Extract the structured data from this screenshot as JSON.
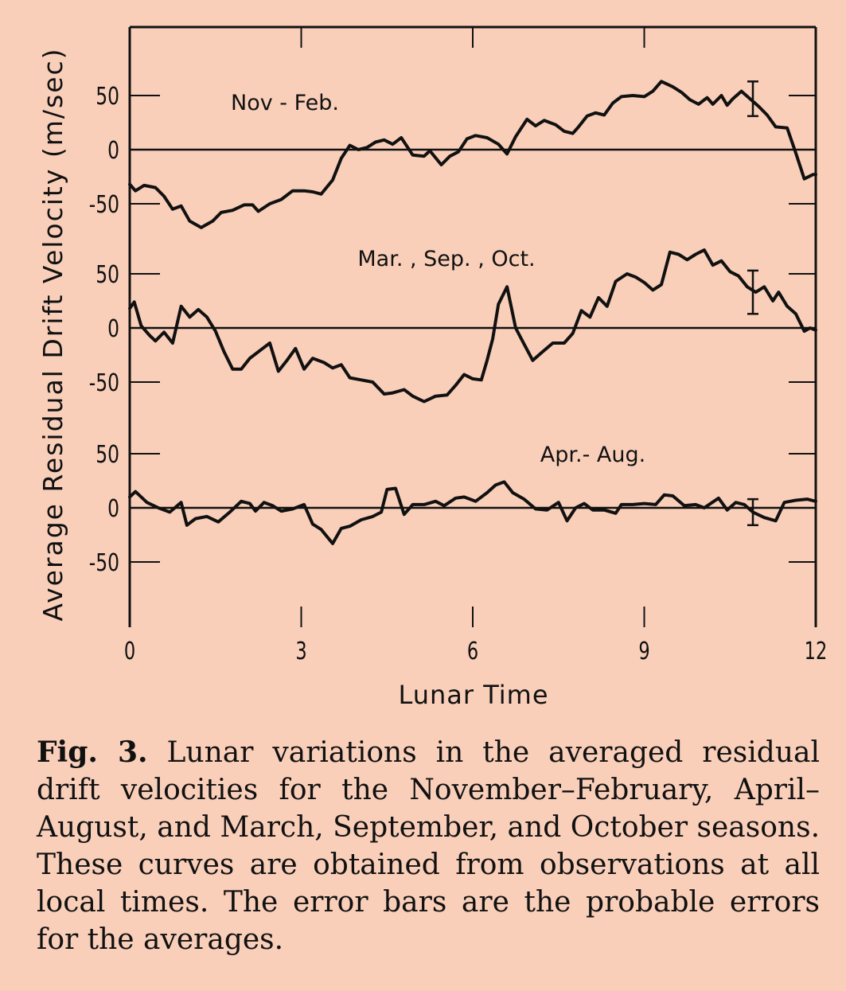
{
  "chart_data": {
    "type": "line",
    "xlabel": "Lunar Time",
    "ylabel": "Average Residual Drift Velocity (m/sec)",
    "xlim": [
      0,
      12
    ],
    "ylim": [
      -75,
      75
    ],
    "x_ticks": [
      0,
      3,
      6,
      9,
      12
    ],
    "x_tick_labels": [
      "0",
      "3",
      "6",
      "9",
      "12"
    ],
    "y_ticks": [
      50,
      0,
      -50
    ],
    "y_tick_labels": [
      "50",
      "0",
      "-50"
    ],
    "panels": [
      {
        "label": "Nov - Feb.",
        "error_bar": {
          "x": 10.9,
          "half_width": 16
        },
        "series": [
          {
            "x": 0,
            "y": -32
          },
          {
            "x": 0.1,
            "y": -38
          },
          {
            "x": 0.25,
            "y": -33
          },
          {
            "x": 0.45,
            "y": -35
          },
          {
            "x": 0.6,
            "y": -43
          },
          {
            "x": 0.75,
            "y": -55
          },
          {
            "x": 0.9,
            "y": -52
          },
          {
            "x": 1.05,
            "y": -66
          },
          {
            "x": 1.25,
            "y": -72
          },
          {
            "x": 1.45,
            "y": -66
          },
          {
            "x": 1.6,
            "y": -58
          },
          {
            "x": 1.8,
            "y": -56
          },
          {
            "x": 2.0,
            "y": -51
          },
          {
            "x": 2.15,
            "y": -51
          },
          {
            "x": 2.25,
            "y": -57
          },
          {
            "x": 2.45,
            "y": -50
          },
          {
            "x": 2.65,
            "y": -46
          },
          {
            "x": 2.85,
            "y": -38
          },
          {
            "x": 3.05,
            "y": -38
          },
          {
            "x": 3.2,
            "y": -39
          },
          {
            "x": 3.35,
            "y": -41
          },
          {
            "x": 3.55,
            "y": -28
          },
          {
            "x": 3.7,
            "y": -8
          },
          {
            "x": 3.85,
            "y": 4
          },
          {
            "x": 4.0,
            "y": 0
          },
          {
            "x": 4.15,
            "y": 2
          },
          {
            "x": 4.3,
            "y": 7
          },
          {
            "x": 4.45,
            "y": 9
          },
          {
            "x": 4.6,
            "y": 5
          },
          {
            "x": 4.75,
            "y": 11
          },
          {
            "x": 4.95,
            "y": -5
          },
          {
            "x": 5.15,
            "y": -6
          },
          {
            "x": 5.25,
            "y": -1
          },
          {
            "x": 5.45,
            "y": -14
          },
          {
            "x": 5.6,
            "y": -6
          },
          {
            "x": 5.75,
            "y": -2
          },
          {
            "x": 5.9,
            "y": 10
          },
          {
            "x": 6.05,
            "y": 13
          },
          {
            "x": 6.25,
            "y": 11
          },
          {
            "x": 6.45,
            "y": 5
          },
          {
            "x": 6.6,
            "y": -4
          },
          {
            "x": 6.75,
            "y": 12
          },
          {
            "x": 6.95,
            "y": 28
          },
          {
            "x": 7.1,
            "y": 22
          },
          {
            "x": 7.25,
            "y": 27
          },
          {
            "x": 7.45,
            "y": 23
          },
          {
            "x": 7.6,
            "y": 17
          },
          {
            "x": 7.75,
            "y": 15
          },
          {
            "x": 7.85,
            "y": 21
          },
          {
            "x": 8.0,
            "y": 31
          },
          {
            "x": 8.15,
            "y": 34
          },
          {
            "x": 8.3,
            "y": 32
          },
          {
            "x": 8.45,
            "y": 43
          },
          {
            "x": 8.6,
            "y": 49
          },
          {
            "x": 8.8,
            "y": 50
          },
          {
            "x": 9.0,
            "y": 49
          },
          {
            "x": 9.15,
            "y": 54
          },
          {
            "x": 9.3,
            "y": 63
          },
          {
            "x": 9.5,
            "y": 58
          },
          {
            "x": 9.65,
            "y": 53
          },
          {
            "x": 9.8,
            "y": 46
          },
          {
            "x": 9.95,
            "y": 42
          },
          {
            "x": 10.1,
            "y": 48
          },
          {
            "x": 10.2,
            "y": 42
          },
          {
            "x": 10.35,
            "y": 50
          },
          {
            "x": 10.45,
            "y": 41
          },
          {
            "x": 10.55,
            "y": 47
          },
          {
            "x": 10.7,
            "y": 54
          },
          {
            "x": 10.85,
            "y": 47
          },
          {
            "x": 11.0,
            "y": 40
          },
          {
            "x": 11.15,
            "y": 32
          },
          {
            "x": 11.3,
            "y": 21
          },
          {
            "x": 11.5,
            "y": 20
          },
          {
            "x": 11.65,
            "y": -3
          },
          {
            "x": 11.8,
            "y": -27
          },
          {
            "x": 11.95,
            "y": -23
          },
          {
            "x": 12.0,
            "y": -23
          }
        ]
      },
      {
        "label": "Mar. , Sep. , Oct.",
        "error_bar": {
          "x": 10.9,
          "half_width": 20
        },
        "series": [
          {
            "x": 0,
            "y": 18
          },
          {
            "x": 0.08,
            "y": 24
          },
          {
            "x": 0.2,
            "y": 2
          },
          {
            "x": 0.35,
            "y": -7
          },
          {
            "x": 0.45,
            "y": -12
          },
          {
            "x": 0.6,
            "y": -4
          },
          {
            "x": 0.75,
            "y": -14
          },
          {
            "x": 0.9,
            "y": 20
          },
          {
            "x": 1.05,
            "y": 10
          },
          {
            "x": 1.2,
            "y": 17
          },
          {
            "x": 1.35,
            "y": 10
          },
          {
            "x": 1.5,
            "y": -3
          },
          {
            "x": 1.65,
            "y": -22
          },
          {
            "x": 1.8,
            "y": -38
          },
          {
            "x": 1.95,
            "y": -38
          },
          {
            "x": 2.1,
            "y": -28
          },
          {
            "x": 2.3,
            "y": -20
          },
          {
            "x": 2.45,
            "y": -14
          },
          {
            "x": 2.6,
            "y": -40
          },
          {
            "x": 2.75,
            "y": -30
          },
          {
            "x": 2.9,
            "y": -19
          },
          {
            "x": 3.05,
            "y": -38
          },
          {
            "x": 3.2,
            "y": -28
          },
          {
            "x": 3.4,
            "y": -32
          },
          {
            "x": 3.55,
            "y": -37
          },
          {
            "x": 3.7,
            "y": -34
          },
          {
            "x": 3.85,
            "y": -46
          },
          {
            "x": 4.05,
            "y": -48
          },
          {
            "x": 4.25,
            "y": -50
          },
          {
            "x": 4.45,
            "y": -61
          },
          {
            "x": 4.6,
            "y": -60
          },
          {
            "x": 4.8,
            "y": -57
          },
          {
            "x": 4.95,
            "y": -63
          },
          {
            "x": 5.15,
            "y": -68
          },
          {
            "x": 5.35,
            "y": -63
          },
          {
            "x": 5.55,
            "y": -62
          },
          {
            "x": 5.7,
            "y": -53
          },
          {
            "x": 5.85,
            "y": -43
          },
          {
            "x": 6.0,
            "y": -47
          },
          {
            "x": 6.15,
            "y": -48
          },
          {
            "x": 6.25,
            "y": -30
          },
          {
            "x": 6.35,
            "y": -10
          },
          {
            "x": 6.45,
            "y": 22
          },
          {
            "x": 6.6,
            "y": 38
          },
          {
            "x": 6.75,
            "y": 0
          },
          {
            "x": 6.9,
            "y": -15
          },
          {
            "x": 7.05,
            "y": -30
          },
          {
            "x": 7.2,
            "y": -23
          },
          {
            "x": 7.4,
            "y": -14
          },
          {
            "x": 7.6,
            "y": -14
          },
          {
            "x": 7.75,
            "y": -5
          },
          {
            "x": 7.9,
            "y": 16
          },
          {
            "x": 8.05,
            "y": 10
          },
          {
            "x": 8.2,
            "y": 28
          },
          {
            "x": 8.35,
            "y": 20
          },
          {
            "x": 8.5,
            "y": 43
          },
          {
            "x": 8.7,
            "y": 50
          },
          {
            "x": 8.85,
            "y": 47
          },
          {
            "x": 9.0,
            "y": 42
          },
          {
            "x": 9.15,
            "y": 35
          },
          {
            "x": 9.3,
            "y": 40
          },
          {
            "x": 9.45,
            "y": 70
          },
          {
            "x": 9.6,
            "y": 68
          },
          {
            "x": 9.75,
            "y": 63
          },
          {
            "x": 9.9,
            "y": 68
          },
          {
            "x": 10.05,
            "y": 72
          },
          {
            "x": 10.2,
            "y": 58
          },
          {
            "x": 10.35,
            "y": 62
          },
          {
            "x": 10.5,
            "y": 52
          },
          {
            "x": 10.65,
            "y": 48
          },
          {
            "x": 10.8,
            "y": 38
          },
          {
            "x": 10.95,
            "y": 33
          },
          {
            "x": 11.1,
            "y": 38
          },
          {
            "x": 11.25,
            "y": 25
          },
          {
            "x": 11.35,
            "y": 33
          },
          {
            "x": 11.5,
            "y": 20
          },
          {
            "x": 11.65,
            "y": 13
          },
          {
            "x": 11.8,
            "y": -3
          },
          {
            "x": 11.9,
            "y": 0
          },
          {
            "x": 12.0,
            "y": -2
          }
        ]
      },
      {
        "label": "Apr.- Aug.",
        "error_bar": {
          "x": 10.9,
          "half_width": 12
        },
        "series": [
          {
            "x": 0,
            "y": 10
          },
          {
            "x": 0.1,
            "y": 15
          },
          {
            "x": 0.3,
            "y": 5
          },
          {
            "x": 0.5,
            "y": 0
          },
          {
            "x": 0.7,
            "y": -4
          },
          {
            "x": 0.9,
            "y": 5
          },
          {
            "x": 1.0,
            "y": -16
          },
          {
            "x": 1.15,
            "y": -10
          },
          {
            "x": 1.35,
            "y": -8
          },
          {
            "x": 1.55,
            "y": -13
          },
          {
            "x": 1.75,
            "y": -4
          },
          {
            "x": 1.95,
            "y": 6
          },
          {
            "x": 2.1,
            "y": 4
          },
          {
            "x": 2.2,
            "y": -3
          },
          {
            "x": 2.35,
            "y": 5
          },
          {
            "x": 2.5,
            "y": 2
          },
          {
            "x": 2.65,
            "y": -3
          },
          {
            "x": 2.85,
            "y": -1
          },
          {
            "x": 3.05,
            "y": 3
          },
          {
            "x": 3.2,
            "y": -15
          },
          {
            "x": 3.35,
            "y": -20
          },
          {
            "x": 3.55,
            "y": -33
          },
          {
            "x": 3.7,
            "y": -19
          },
          {
            "x": 3.85,
            "y": -17
          },
          {
            "x": 4.05,
            "y": -11
          },
          {
            "x": 4.25,
            "y": -8
          },
          {
            "x": 4.4,
            "y": -4
          },
          {
            "x": 4.5,
            "y": 17
          },
          {
            "x": 4.65,
            "y": 18
          },
          {
            "x": 4.8,
            "y": -6
          },
          {
            "x": 4.95,
            "y": 3
          },
          {
            "x": 5.15,
            "y": 3
          },
          {
            "x": 5.35,
            "y": 6
          },
          {
            "x": 5.5,
            "y": 2
          },
          {
            "x": 5.7,
            "y": 9
          },
          {
            "x": 5.85,
            "y": 10
          },
          {
            "x": 6.05,
            "y": 6
          },
          {
            "x": 6.25,
            "y": 14
          },
          {
            "x": 6.4,
            "y": 21
          },
          {
            "x": 6.55,
            "y": 24
          },
          {
            "x": 6.7,
            "y": 14
          },
          {
            "x": 6.9,
            "y": 8
          },
          {
            "x": 7.1,
            "y": -1
          },
          {
            "x": 7.3,
            "y": -2
          },
          {
            "x": 7.5,
            "y": 5
          },
          {
            "x": 7.65,
            "y": -12
          },
          {
            "x": 7.8,
            "y": 0
          },
          {
            "x": 7.95,
            "y": 4
          },
          {
            "x": 8.1,
            "y": -2
          },
          {
            "x": 8.3,
            "y": -2
          },
          {
            "x": 8.5,
            "y": -5
          },
          {
            "x": 8.6,
            "y": 3
          },
          {
            "x": 8.8,
            "y": 3
          },
          {
            "x": 9.0,
            "y": 4
          },
          {
            "x": 9.2,
            "y": 3
          },
          {
            "x": 9.35,
            "y": 12
          },
          {
            "x": 9.5,
            "y": 11
          },
          {
            "x": 9.7,
            "y": 2
          },
          {
            "x": 9.9,
            "y": 3
          },
          {
            "x": 10.05,
            "y": 0
          },
          {
            "x": 10.3,
            "y": 9
          },
          {
            "x": 10.45,
            "y": -2
          },
          {
            "x": 10.6,
            "y": 5
          },
          {
            "x": 10.75,
            "y": 3
          },
          {
            "x": 10.9,
            "y": -4
          },
          {
            "x": 11.1,
            "y": -9
          },
          {
            "x": 11.3,
            "y": -12
          },
          {
            "x": 11.45,
            "y": 5
          },
          {
            "x": 11.65,
            "y": 7
          },
          {
            "x": 11.85,
            "y": 8
          },
          {
            "x": 12.0,
            "y": 6
          }
        ]
      }
    ],
    "grid": false,
    "legend": "none"
  },
  "caption": {
    "fig_label": "Fig. 3.",
    "text": "Lunar variations in the averaged residual drift velocities for the November–February, April–August, and March, September, and October seasons. These curves are obtained from observations at all local times. The error bars are the probable errors for the averages."
  },
  "colors": {
    "background": "#f9cfba",
    "ink": "#111111"
  }
}
